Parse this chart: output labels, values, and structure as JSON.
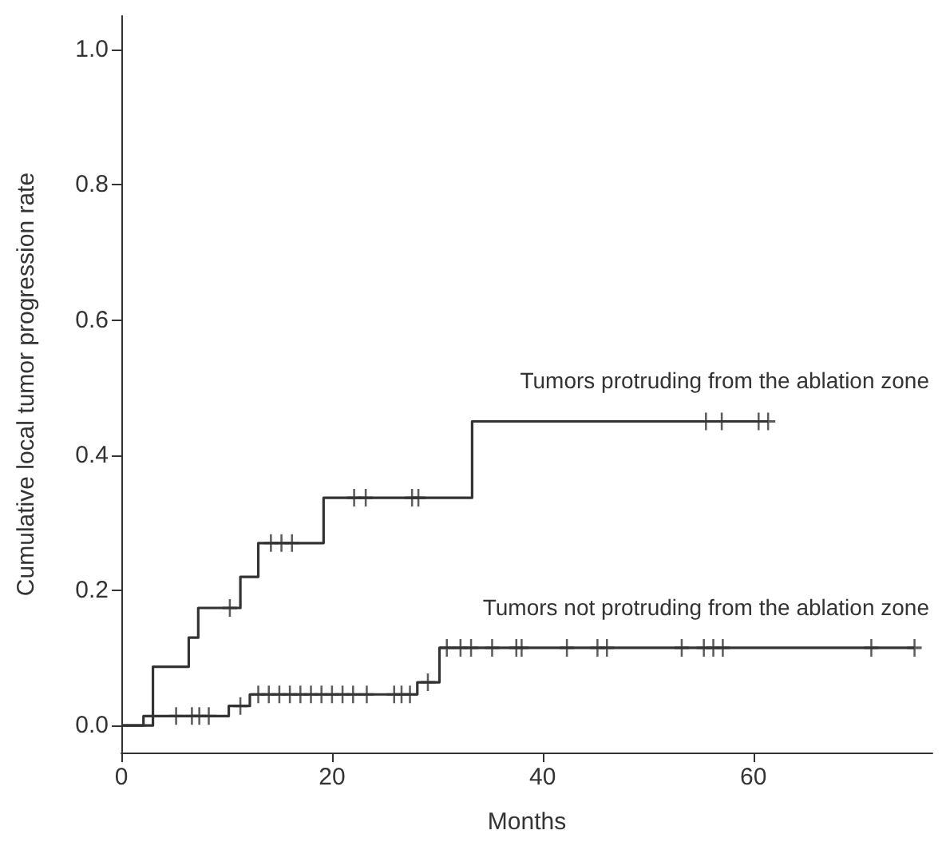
{
  "chart_data": {
    "type": "step",
    "xlabel": "Months",
    "ylabel": "Cumulative local tumor progression rate",
    "xlim": [
      0,
      77
    ],
    "xticks": [
      0,
      20,
      40,
      60
    ],
    "ylim": [
      -0.04,
      1.05
    ],
    "yticks": [
      {
        "value": 0,
        "label": "0.0"
      },
      0.2,
      0.4,
      0.6,
      0.8,
      {
        "value": 1,
        "label": "1.0"
      }
    ],
    "grid": false,
    "marker": "none",
    "series": [
      {
        "color": "#333333",
        "x": [
          0,
          3,
          6.4,
          7.3,
          11.3,
          13,
          19.2,
          33.3,
          61.4
        ],
        "values": [
          0,
          0.087,
          0.13,
          0.174,
          0.22,
          0.27,
          0.337,
          0.45,
          0.45
        ]
      },
      {
        "color": "#333333",
        "x": [
          0,
          2.1,
          10.2,
          12.2,
          28.1,
          30.2,
          75.3
        ],
        "values": [
          0,
          0.014,
          0.029,
          0.046,
          0.064,
          0.115,
          0.115
        ]
      },
      {
        "type": "scatter",
        "marker": "cross",
        "color": "#333333",
        "x": [
          10.3,
          14.2,
          15.2,
          16.2,
          22.1,
          23.2,
          27.6,
          28.2,
          55.5,
          57,
          60.5,
          61.4
        ],
        "values": [
          0.174,
          0.27,
          0.27,
          0.27,
          0.337,
          0.337,
          0.337,
          0.337,
          0.45,
          0.45,
          0.45,
          0.45
        ]
      },
      {
        "type": "scatter",
        "marker": "cross",
        "color": "#333333",
        "x": [
          5.2,
          6.7,
          7.4,
          8.3,
          11.3,
          13,
          14,
          15,
          16,
          17,
          18,
          19,
          20,
          21,
          22,
          23.3,
          25.9,
          26.6,
          27.4,
          29.1,
          30.9,
          32.2,
          33.2,
          35.2,
          37.5,
          38,
          42.3,
          45.2,
          46.1,
          53.2,
          55.3,
          56.2,
          57.1,
          71.2,
          75.3
        ],
        "values": [
          0.014,
          0.014,
          0.014,
          0.014,
          0.029,
          0.046,
          0.046,
          0.046,
          0.046,
          0.046,
          0.046,
          0.046,
          0.046,
          0.046,
          0.046,
          0.046,
          0.046,
          0.046,
          0.046,
          0.064,
          0.115,
          0.115,
          0.115,
          0.115,
          0.115,
          0.115,
          0.115,
          0.115,
          0.115,
          0.115,
          0.115,
          0.115,
          0.115,
          0.115,
          0.115
        ]
      }
    ],
    "annotations": [
      "Tumors protruding from the ablation zone",
      "Tumors not protruding from the ablation zone"
    ]
  }
}
